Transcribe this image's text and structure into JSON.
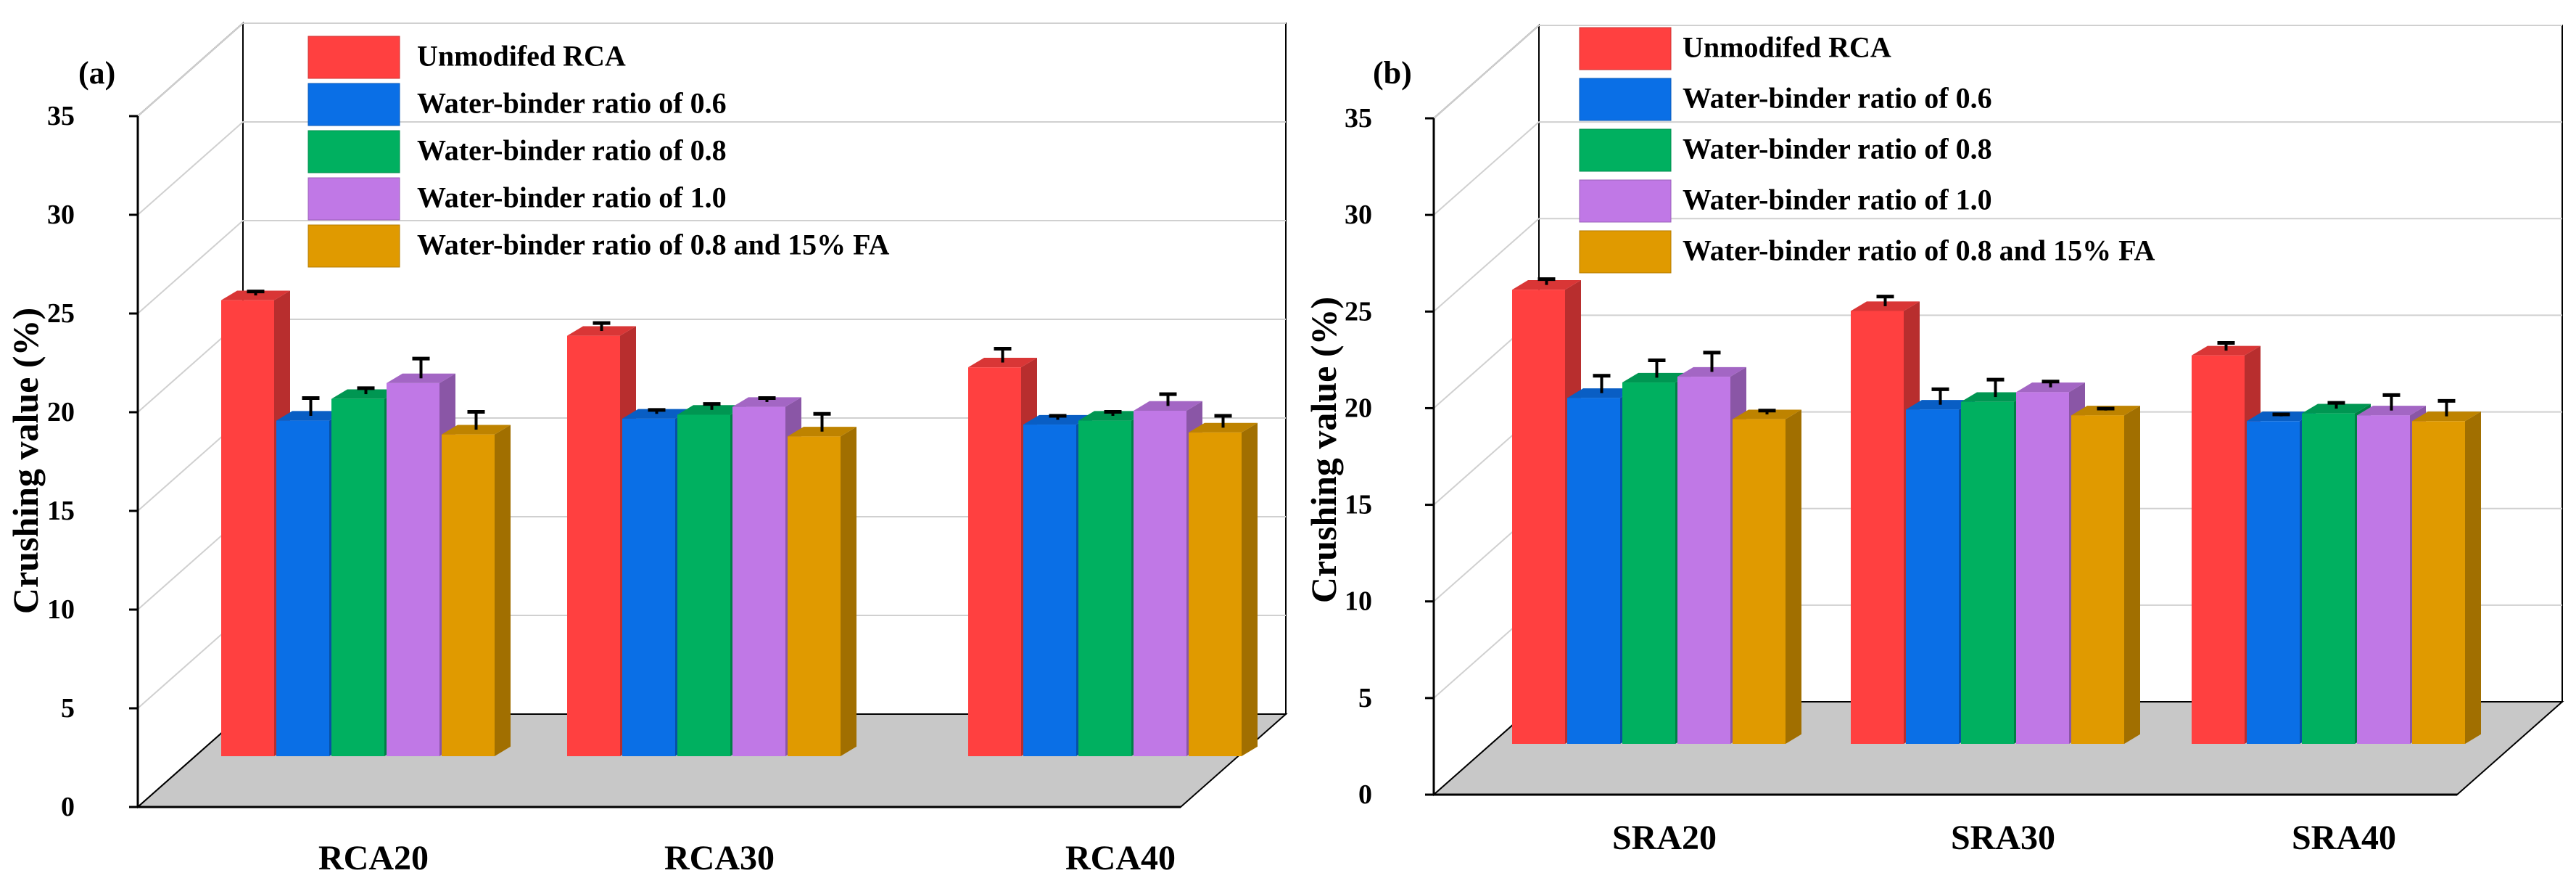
{
  "colors": {
    "unmodified": "#FF4040",
    "wb06": "#0A6FE6",
    "wb08": "#00B060",
    "wb10": "#C078E6",
    "wb08fa": "#E09A00",
    "floor": "#C8C8C8",
    "grid": "#D0D0D0"
  },
  "chart_data": [
    {
      "type": "bar",
      "panel_label": "(a)",
      "ylabel": "Crushing value (%)",
      "ylim": [
        0,
        35
      ],
      "yticks": [
        "0",
        "5",
        "10",
        "15",
        "20",
        "25",
        "30",
        "35"
      ],
      "categories": [
        "RCA20",
        "RCA30",
        "RCA40"
      ],
      "series": [
        {
          "name": "Unmodifed RCA",
          "color_key": "unmodified",
          "values": [
            24.6,
            22.8,
            21.2
          ],
          "errors": [
            0.2,
            0.4,
            0.7
          ]
        },
        {
          "name": "Water-binder ratio of 0.6",
          "color_key": "wb06",
          "values": [
            18.5,
            18.6,
            18.3
          ],
          "errors": [
            0.9,
            0.2,
            0.2
          ]
        },
        {
          "name": "Water-binder ratio of 0.8",
          "color_key": "wb08",
          "values": [
            19.6,
            18.8,
            18.5
          ],
          "errors": [
            0.3,
            0.3,
            0.2
          ]
        },
        {
          "name": "Water-binder ratio of 1.0",
          "color_key": "wb10",
          "values": [
            20.4,
            19.2,
            19.0
          ],
          "errors": [
            1.0,
            0.2,
            0.6
          ]
        },
        {
          "name": "Water-binder ratio of 0.8 and 15% FA",
          "color_key": "wb08fa",
          "values": [
            17.8,
            17.7,
            17.9
          ],
          "errors": [
            0.9,
            0.9,
            0.6
          ]
        }
      ]
    },
    {
      "type": "bar",
      "panel_label": "(b)",
      "ylabel": "Crushing value (%)",
      "ylim": [
        0,
        35
      ],
      "yticks": [
        "0",
        "5",
        "10",
        "15",
        "20",
        "25",
        "30",
        "35"
      ],
      "categories": [
        "SRA20",
        "SRA30",
        "SRA40"
      ],
      "series": [
        {
          "name": "Unmodifed RCA",
          "color_key": "unmodified",
          "values": [
            25.0,
            23.9,
            21.6
          ],
          "errors": [
            0.3,
            0.5,
            0.4
          ]
        },
        {
          "name": "Water-binder ratio of 0.6",
          "color_key": "wb06",
          "values": [
            19.4,
            18.8,
            18.2
          ],
          "errors": [
            0.9,
            0.8,
            0.1
          ]
        },
        {
          "name": "Water-binder ratio of 0.8",
          "color_key": "wb08",
          "values": [
            20.2,
            19.2,
            18.6
          ],
          "errors": [
            0.9,
            0.9,
            0.3
          ]
        },
        {
          "name": "Water-binder ratio of 1.0",
          "color_key": "wb10",
          "values": [
            20.5,
            19.7,
            18.5
          ],
          "errors": [
            1.0,
            0.3,
            0.8
          ]
        },
        {
          "name": "Water-binder ratio of 0.8 and 15% FA",
          "color_key": "wb08fa",
          "values": [
            18.3,
            18.5,
            18.2
          ],
          "errors": [
            0.2,
            0.1,
            0.8
          ]
        }
      ]
    }
  ]
}
